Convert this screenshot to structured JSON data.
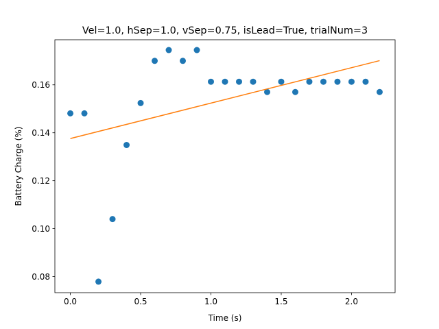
{
  "chart_data": {
    "type": "scatter",
    "title": "Vel=1.0, hSep=1.0, vSep=0.75, isLead=True, trialNum=3",
    "xlabel": "Time (s)",
    "ylabel": "Battery Charge (%)",
    "xlim": [
      -0.11,
      2.31
    ],
    "ylim": [
      0.0733,
      0.1788
    ],
    "xticks": [
      {
        "value": 0.0,
        "label": "0.0"
      },
      {
        "value": 0.5,
        "label": "0.5"
      },
      {
        "value": 1.0,
        "label": "1.0"
      },
      {
        "value": 1.5,
        "label": "1.5"
      },
      {
        "value": 2.0,
        "label": "2.0"
      }
    ],
    "yticks": [
      {
        "value": 0.08,
        "label": "0.08"
      },
      {
        "value": 0.1,
        "label": "0.10"
      },
      {
        "value": 0.12,
        "label": "0.12"
      },
      {
        "value": 0.14,
        "label": "0.14"
      },
      {
        "value": 0.16,
        "label": "0.16"
      }
    ],
    "grid": false,
    "series": [
      {
        "kind": "scatter",
        "color": "#1f77b4",
        "x": [
          0.0,
          0.1,
          0.2,
          0.3,
          0.4,
          0.5,
          0.6,
          0.7,
          0.8,
          0.9,
          1.0,
          1.1,
          1.2,
          1.3,
          1.4,
          1.5,
          1.6,
          1.7,
          1.8,
          1.9,
          2.0,
          2.1,
          2.2
        ],
        "y": [
          0.1481,
          0.1481,
          0.0779,
          0.104,
          0.1349,
          0.1524,
          0.17,
          0.1745,
          0.17,
          0.1745,
          0.1613,
          0.1613,
          0.1613,
          0.1613,
          0.157,
          0.1613,
          0.157,
          0.1613,
          0.1613,
          0.1613,
          0.1613,
          0.1613,
          0.157
        ]
      },
      {
        "kind": "line",
        "color": "#ff7f0e",
        "x": [
          0.0,
          2.2
        ],
        "y": [
          0.1376,
          0.1701
        ]
      }
    ]
  }
}
